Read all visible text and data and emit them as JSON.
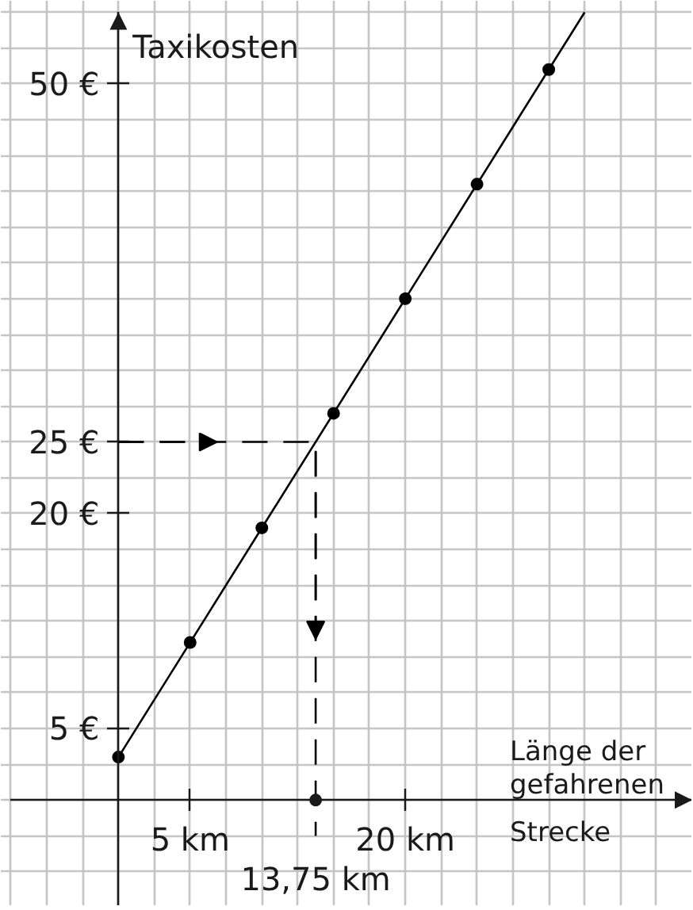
{
  "chart_data": {
    "type": "line",
    "xlabel": "Länge der gefahrenen Strecke",
    "ylabel": "Taxikosten",
    "xlim": [
      -8.2,
      40
    ],
    "ylim": [
      -7.4,
      55.8
    ],
    "xticks": [
      {
        "value": -7.5,
        "label": null
      },
      {
        "value": -5,
        "label": null
      },
      {
        "value": -2.5,
        "label": null
      },
      {
        "value": 0,
        "label": null
      },
      {
        "value": 2.5,
        "label": null
      },
      {
        "value": 5,
        "label": "5 km"
      },
      {
        "value": 7.5,
        "label": null
      },
      {
        "value": 10,
        "label": null
      },
      {
        "value": 12.5,
        "label": null
      },
      {
        "value": 15,
        "label": null
      },
      {
        "value": 17.5,
        "label": null
      },
      {
        "value": 20,
        "label": "20 km"
      },
      {
        "value": 22.5,
        "label": null
      },
      {
        "value": 25,
        "label": null
      },
      {
        "value": 27.5,
        "label": null
      },
      {
        "value": 30,
        "label": null
      },
      {
        "value": 32.5,
        "label": null
      },
      {
        "value": 35,
        "label": null
      },
      {
        "value": 37.5,
        "label": null
      }
    ],
    "yticks": [
      {
        "value": -5,
        "label": null
      },
      {
        "value": -2.5,
        "label": null
      },
      {
        "value": 0,
        "label": null
      },
      {
        "value": 2.5,
        "label": null
      },
      {
        "value": 5,
        "label": "5 €"
      },
      {
        "value": 7.5,
        "label": null
      },
      {
        "value": 10,
        "label": null
      },
      {
        "value": 12.5,
        "label": null
      },
      {
        "value": 15,
        "label": null
      },
      {
        "value": 17.5,
        "label": null
      },
      {
        "value": 20,
        "label": "20 €"
      },
      {
        "value": 22.5,
        "label": null
      },
      {
        "value": 25,
        "label": "25 €"
      },
      {
        "value": 27.5,
        "label": null
      },
      {
        "value": 30,
        "label": null
      },
      {
        "value": 32.5,
        "label": null
      },
      {
        "value": 35,
        "label": null
      },
      {
        "value": 37.5,
        "label": null
      },
      {
        "value": 40,
        "label": null
      },
      {
        "value": 42.5,
        "label": null
      },
      {
        "value": 45,
        "label": null
      },
      {
        "value": 47.5,
        "label": null
      },
      {
        "value": 50,
        "label": "50 €"
      },
      {
        "value": 52.5,
        "label": null
      },
      {
        "value": 55,
        "label": null
      }
    ],
    "grid": true,
    "series": [
      {
        "color": "#000000",
        "x": [
          0,
          32.5
        ],
        "values": [
          3,
          55
        ],
        "marker": "none",
        "line_style": "solid"
      },
      {
        "type": "scatter",
        "color": "#000000",
        "x": [
          0,
          5,
          10,
          15,
          20,
          25,
          30
        ],
        "values": [
          3,
          11,
          19,
          27,
          35,
          43,
          51
        ],
        "marker": "circle"
      },
      {
        "color": "#000000",
        "x": [
          0,
          13.75,
          13.75
        ],
        "values": [
          25,
          25,
          -2.5
        ],
        "marker": "none",
        "line_style": "dashed"
      }
    ],
    "annotations": [
      {
        "text": "13,75 km",
        "x": 13.75,
        "y": 0
      }
    ]
  }
}
